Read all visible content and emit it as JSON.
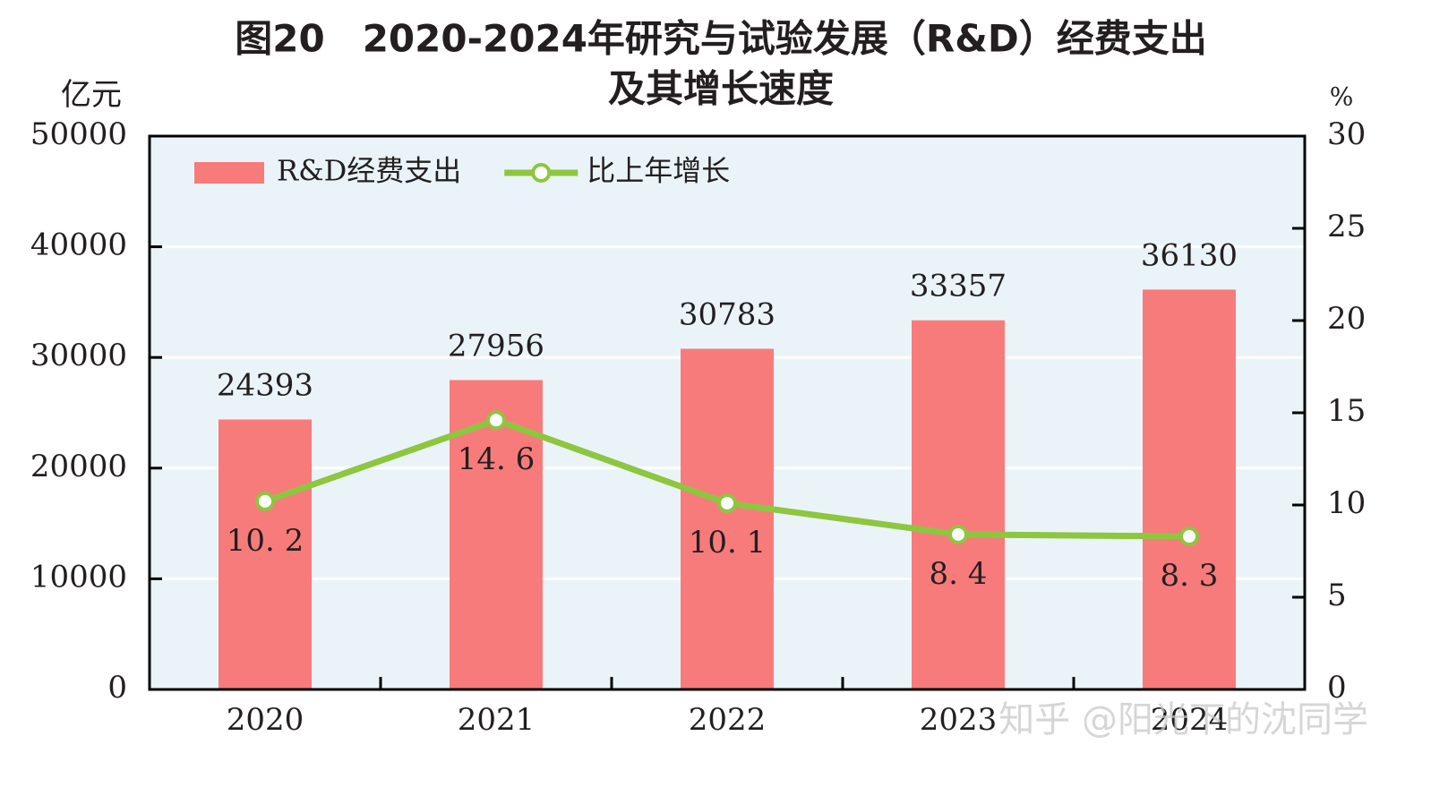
{
  "chart_data": {
    "type": "bar",
    "title": [
      "图20　2020-2024年研究与试验发展（R&D）经费支出",
      "及其增长速度"
    ],
    "y_label": "亿元",
    "y2_label": "%",
    "categories": [
      "2020",
      "2021",
      "2022",
      "2023",
      "2024"
    ],
    "series": [
      {
        "name": "R&D经费支出",
        "type": "bar",
        "color": "#f87b7b",
        "values": [
          24393,
          27956,
          30783,
          33357,
          36130
        ]
      },
      {
        "name": "比上年增长",
        "type": "line",
        "axis": "y2",
        "color": "#8dc63f",
        "values": [
          10.2,
          14.6,
          10.1,
          8.4,
          8.3
        ],
        "value_labels": [
          "10. 2",
          "14. 6",
          "10. 1",
          "8. 4",
          "8. 3"
        ]
      }
    ],
    "ylim": [
      0,
      50000
    ],
    "yticks": [
      0,
      10000,
      20000,
      30000,
      40000,
      50000
    ],
    "y2lim": [
      0,
      30
    ],
    "y2ticks": [
      0,
      5,
      10,
      15,
      20,
      25,
      30
    ],
    "grid": true,
    "legend": "top-left",
    "watermark": "知乎 @阳光下的沈同学"
  }
}
